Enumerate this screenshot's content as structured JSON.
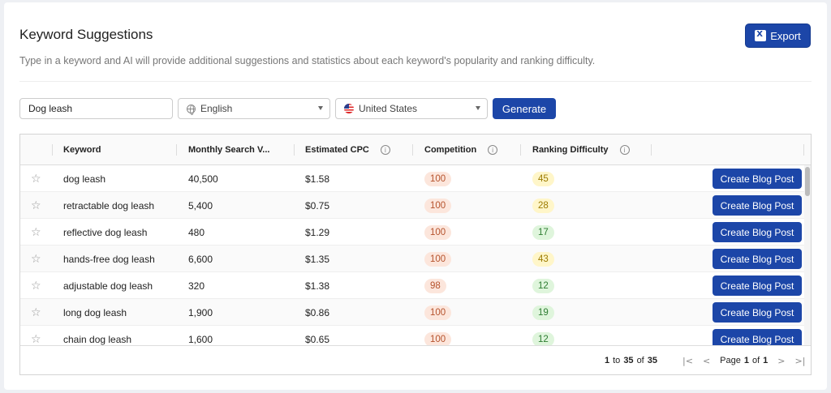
{
  "header": {
    "title": "Keyword Suggestions",
    "subtitle": "Type in a keyword and AI will provide additional suggestions and statistics about each keyword's popularity and ranking difficulty.",
    "export_label": "Export"
  },
  "search": {
    "keyword_value": "Dog leash",
    "language": "English",
    "country": "United States",
    "generate_label": "Generate"
  },
  "table": {
    "columns": {
      "keyword": "Keyword",
      "volume": "Monthly Search V...",
      "cpc": "Estimated CPC",
      "competition": "Competition",
      "difficulty": "Ranking Difficulty"
    },
    "action_label": "Create Blog Post",
    "rows": [
      {
        "keyword": "dog leash",
        "volume": "40,500",
        "cpc": "$1.58",
        "competition": "100",
        "difficulty": "45",
        "difficulty_level": "yellow"
      },
      {
        "keyword": "retractable dog leash",
        "volume": "5,400",
        "cpc": "$0.75",
        "competition": "100",
        "difficulty": "28",
        "difficulty_level": "yellow"
      },
      {
        "keyword": "reflective dog leash",
        "volume": "480",
        "cpc": "$1.29",
        "competition": "100",
        "difficulty": "17",
        "difficulty_level": "green"
      },
      {
        "keyword": "hands-free dog leash",
        "volume": "6,600",
        "cpc": "$1.35",
        "competition": "100",
        "difficulty": "43",
        "difficulty_level": "yellow"
      },
      {
        "keyword": "adjustable dog leash",
        "volume": "320",
        "cpc": "$1.38",
        "competition": "98",
        "difficulty": "12",
        "difficulty_level": "green"
      },
      {
        "keyword": "long dog leash",
        "volume": "1,900",
        "cpc": "$0.86",
        "competition": "100",
        "difficulty": "19",
        "difficulty_level": "green"
      },
      {
        "keyword": "chain dog leash",
        "volume": "1,600",
        "cpc": "$0.65",
        "competition": "100",
        "difficulty": "12",
        "difficulty_level": "green"
      }
    ]
  },
  "pagination": {
    "range_start": "1",
    "range_to": "to",
    "range_end": "35",
    "of_word": "of",
    "total": "35",
    "page_word": "Page",
    "current_page": "1",
    "total_pages": "1"
  },
  "colors": {
    "primary": "#1c46a8",
    "pill_red_bg": "#fce6dc",
    "pill_yellow_bg": "#fff6c9",
    "pill_green_bg": "#dff5dc"
  }
}
